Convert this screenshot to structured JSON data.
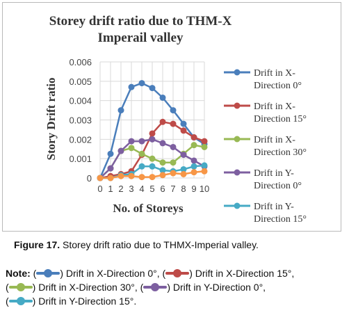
{
  "chart_data": {
    "type": "line",
    "title_line1": "Storey drift ratio due to THM-X",
    "title_line2": "Imperail valley",
    "xlabel": "No. of Storeys",
    "ylabel": "Story Drift ratio",
    "x": [
      0,
      1,
      2,
      3,
      4,
      5,
      6,
      7,
      8,
      9,
      10
    ],
    "ylim": [
      0,
      0.006
    ],
    "yticks": [
      "0",
      "0.001",
      "0.002",
      "0.003",
      "0.004",
      "0.005",
      "0.006"
    ],
    "grid": true,
    "legend_position": "right",
    "series": [
      {
        "name_line1": "Drift  in X-",
        "name_line2": "Direction 0°",
        "color": "#4a7ebb",
        "values": [
          0,
          0.00125,
          0.0035,
          0.0047,
          0.0049,
          0.00465,
          0.00415,
          0.0035,
          0.0028,
          0.0021,
          0.00175
        ]
      },
      {
        "name_line1": "Drift  in X-",
        "name_line2": "Direction 15°",
        "color": "#be4b48",
        "values": [
          0,
          0.0001,
          0.0002,
          0.00035,
          0.0012,
          0.0023,
          0.0029,
          0.0028,
          0.00245,
          0.0021,
          0.0019
        ]
      },
      {
        "name_line1": "Drift  in X-",
        "name_line2": "Direction 30°",
        "color": "#98b954",
        "values": [
          0,
          0.0005,
          0.0014,
          0.00155,
          0.00125,
          0.001,
          0.0008,
          0.0008,
          0.00125,
          0.0017,
          0.0016
        ]
      },
      {
        "name_line1": "Drift in Y-",
        "name_line2": "Direction 0°",
        "color": "#7d5fa0",
        "values": [
          0,
          0.0005,
          0.0014,
          0.0019,
          0.0019,
          0.002,
          0.0018,
          0.0016,
          0.0012,
          0.0009,
          0.0006
        ]
      },
      {
        "name_line1": "Drift in Y-",
        "name_line2": "Direction 15°",
        "color": "#46aac5",
        "values": [
          0,
          0.0,
          0.00015,
          0.0002,
          0.0006,
          0.0006,
          0.0004,
          0.00035,
          0.00045,
          0.0006,
          0.00065
        ]
      },
      {
        "name_line1": "",
        "name_line2": "",
        "color": "#f79646",
        "legend": false,
        "values": [
          0,
          0.0,
          0.0001,
          0.0001,
          5e-05,
          5e-05,
          0.00015,
          0.00025,
          0.0002,
          0.0003,
          0.00035
        ]
      }
    ]
  },
  "caption": {
    "label": "Figure 17.",
    "text": " Storey drift ratio due to THMX-Imperial valley."
  },
  "note": {
    "label": "Note:",
    "item1": ") Drift in X-Direction 0°, (",
    "item2": ") Drift in X-Direction 15°,",
    "item3": ") Drift in X-Direction 30°, (",
    "item4": ") Drift in Y-Direction 0°,",
    "item5": ") Drift in Y-Direction 15°."
  }
}
